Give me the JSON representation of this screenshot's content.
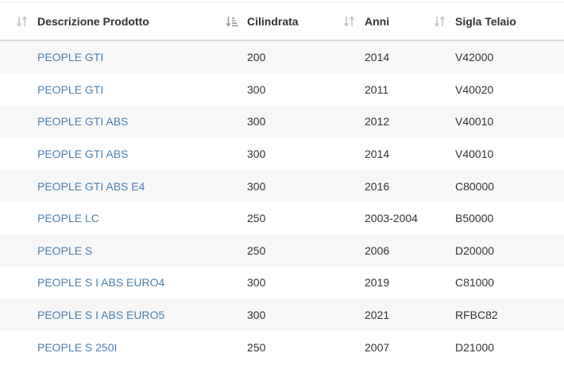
{
  "table": {
    "columns": [
      {
        "label": "Descrizione Prodotto",
        "sort_icon": "sort-icon"
      },
      {
        "label": "Cilindrata",
        "sort_icon": "sort-ascending-icon"
      },
      {
        "label": "Anni",
        "sort_icon": "sort-icon"
      },
      {
        "label": "Sigla Telaio",
        "sort_icon": "sort-icon"
      }
    ],
    "rows": [
      {
        "product": "PEOPLE GTI",
        "displacement": "200",
        "years": "2014",
        "frame": "V42000"
      },
      {
        "product": "PEOPLE GTI",
        "displacement": "300",
        "years": "2011",
        "frame": "V40020"
      },
      {
        "product": "PEOPLE GTI ABS",
        "displacement": "300",
        "years": "2012",
        "frame": "V40010"
      },
      {
        "product": "PEOPLE GTI ABS",
        "displacement": "300",
        "years": "2014",
        "frame": "V40010"
      },
      {
        "product": "PEOPLE GTI ABS E4",
        "displacement": "300",
        "years": "2016",
        "frame": "C80000"
      },
      {
        "product": "PEOPLE LC",
        "displacement": "250",
        "years": "2003-2004",
        "frame": "B50000"
      },
      {
        "product": "PEOPLE S",
        "displacement": "250",
        "years": "2006",
        "frame": "D20000"
      },
      {
        "product": "PEOPLE S I ABS EURO4",
        "displacement": "300",
        "years": "2019",
        "frame": "C81000"
      },
      {
        "product": "PEOPLE S I ABS EURO5",
        "displacement": "300",
        "years": "2021",
        "frame": "RFBC82"
      },
      {
        "product": "PEOPLE S 250I",
        "displacement": "250",
        "years": "2007",
        "frame": "D21000"
      }
    ]
  },
  "colors": {
    "link": "#4d7fae",
    "stripe": "#f7f7f7",
    "icon": "#b8b8b8"
  }
}
